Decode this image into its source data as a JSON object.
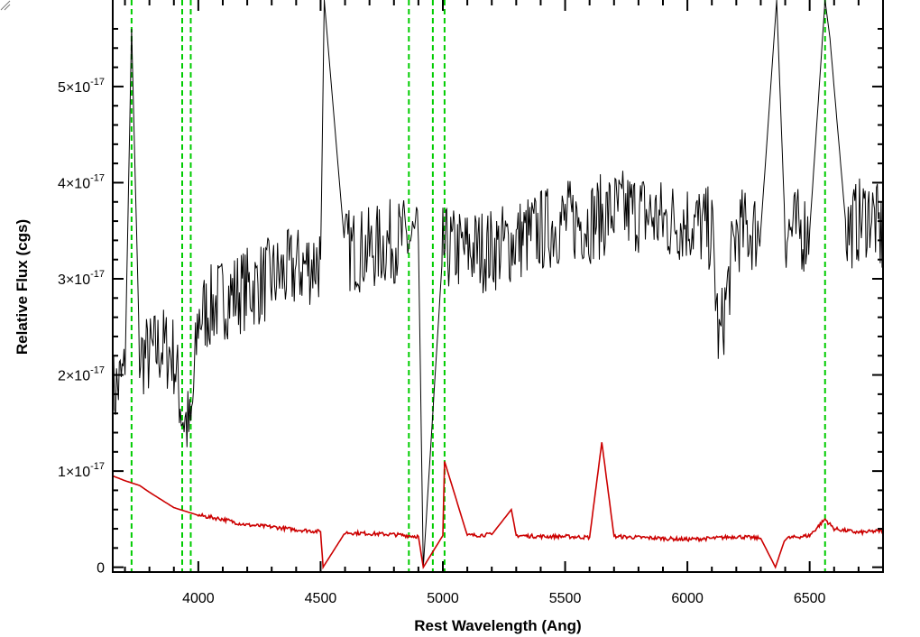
{
  "chart_data": {
    "type": "line",
    "title": "",
    "xlabel": "Rest Wavelength (Ang)",
    "ylabel": "Relative Flux (cgs)",
    "xlim": [
      3650,
      6800
    ],
    "ylim": [
      -5e-19,
      5.9e-17
    ],
    "x_ticks": [
      {
        "value": 4000,
        "label": "4000"
      },
      {
        "value": 4500,
        "label": "4500"
      },
      {
        "value": 5000,
        "label": "5000"
      },
      {
        "value": 5500,
        "label": "5500"
      },
      {
        "value": 6000,
        "label": "6000"
      },
      {
        "value": 6500,
        "label": "6500"
      }
    ],
    "y_ticks": [
      {
        "value": 0,
        "mantissa": "0",
        "exp": ""
      },
      {
        "value": 1e-17,
        "mantissa": "1×10",
        "exp": "-17"
      },
      {
        "value": 2e-17,
        "mantissa": "2×10",
        "exp": "-17"
      },
      {
        "value": 3e-17,
        "mantissa": "3×10",
        "exp": "-17"
      },
      {
        "value": 4e-17,
        "mantissa": "4×10",
        "exp": "-17"
      },
      {
        "value": 5e-17,
        "mantissa": "5×10",
        "exp": "-17"
      }
    ],
    "grid": false,
    "legend": "none",
    "series": [
      {
        "color": "#000000",
        "x": [
          3650,
          3700,
          3727,
          3760,
          3800,
          3850,
          3900,
          3934,
          3969,
          4000,
          4100,
          4200,
          4300,
          4400,
          4500,
          4515,
          4600,
          4700,
          4800,
          4900,
          4920,
          5000,
          5100,
          5200,
          5300,
          5400,
          5500,
          5600,
          5700,
          5800,
          5900,
          6000,
          6100,
          6130,
          6200,
          6300,
          6365,
          6400,
          6500,
          6563,
          6583,
          6650,
          6700,
          6750,
          6800
        ],
        "y": [
          1.8e-17,
          2e-17,
          5.6e-17,
          2.2e-17,
          2.2e-17,
          2.3e-17,
          2.2e-17,
          1.6e-17,
          1.4e-17,
          2.6e-17,
          2.8e-17,
          2.9e-17,
          3e-17,
          3.1e-17,
          3.2e-17,
          5.9e-17,
          3.3e-17,
          3.3e-17,
          3.4e-17,
          3.4e-17,
          0.0,
          3.3e-17,
          3.3e-17,
          3.3e-17,
          3.4e-17,
          3.5e-17,
          3.6e-17,
          3.6e-17,
          3.7e-17,
          3.7e-17,
          3.6e-17,
          3.6e-17,
          3.5e-17,
          2.3e-17,
          3.5e-17,
          3.5e-17,
          5.9e-17,
          3.5e-17,
          3.5e-17,
          5.9e-17,
          5.5e-17,
          3.5e-17,
          3.6e-17,
          3.7e-17,
          3.4e-17
        ]
      },
      {
        "color": "#cc0000",
        "x": [
          3650,
          3700,
          3760,
          3800,
          3900,
          4000,
          4100,
          4160,
          4200,
          4300,
          4400,
          4500,
          4510,
          4600,
          4700,
          4800,
          4900,
          4920,
          5000,
          5007,
          5100,
          5200,
          5280,
          5300,
          5400,
          5500,
          5600,
          5650,
          5700,
          5800,
          5900,
          6000,
          6100,
          6200,
          6300,
          6360,
          6400,
          6500,
          6563,
          6600,
          6700,
          6800
        ],
        "y": [
          9.5e-18,
          9e-18,
          8.5e-18,
          7.8e-18,
          6.2e-18,
          5.4e-18,
          5e-18,
          4.6e-18,
          4.4e-18,
          4.2e-18,
          3.9e-18,
          3.7e-18,
          0.0,
          3.6e-18,
          3.5e-18,
          3.4e-18,
          3.2e-18,
          0.0,
          3.3e-18,
          1.1e-17,
          3.3e-18,
          3.4e-18,
          6e-18,
          3.3e-18,
          3.2e-18,
          3.2e-18,
          3.1e-18,
          1.3e-17,
          3.2e-18,
          3.1e-18,
          3e-18,
          2.9e-18,
          3e-18,
          3.2e-18,
          3e-18,
          0.0,
          3e-18,
          3.3e-18,
          5e-18,
          4e-18,
          3.6e-18,
          3.8e-18
        ]
      }
    ],
    "annotations": [
      {
        "type": "vline",
        "x": 3727,
        "color": "#00cc00",
        "style": "dashed"
      },
      {
        "type": "vline",
        "x": 3934,
        "color": "#00cc00",
        "style": "dashed"
      },
      {
        "type": "vline",
        "x": 3969,
        "color": "#00cc00",
        "style": "dashed"
      },
      {
        "type": "vline",
        "x": 4861,
        "color": "#00cc00",
        "style": "dashed"
      },
      {
        "type": "vline",
        "x": 4959,
        "color": "#00cc00",
        "style": "dashed"
      },
      {
        "type": "vline",
        "x": 5007,
        "color": "#00cc00",
        "style": "dashed"
      },
      {
        "type": "vline",
        "x": 6563,
        "color": "#00cc00",
        "style": "dashed"
      }
    ]
  },
  "corner_icon": "resize-grip-icon"
}
